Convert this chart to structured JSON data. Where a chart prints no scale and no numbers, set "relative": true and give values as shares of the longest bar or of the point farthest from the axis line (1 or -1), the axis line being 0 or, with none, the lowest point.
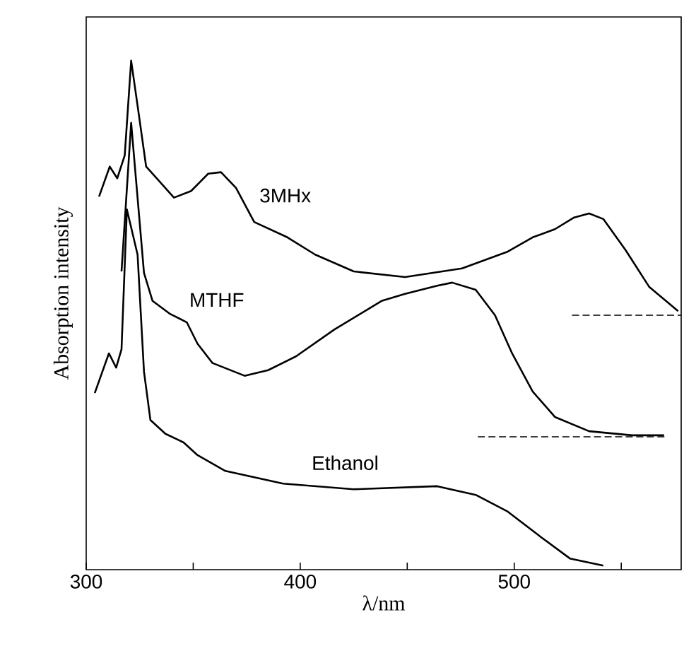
{
  "chart_data": {
    "type": "line",
    "relative": true,
    "xlabel": "λ/nm",
    "ylabel": "Absorption intensity",
    "xlim": [
      300,
      578
    ],
    "xticks": [
      300,
      {
        "value": 350,
        "label": null
      },
      400,
      {
        "value": 450,
        "label": null
      },
      500,
      {
        "value": 550,
        "label": null
      }
    ],
    "tick_labels": "x",
    "grid": false,
    "marker": "none",
    "series": [
      {
        "name": "3MHx",
        "color": "#000000",
        "x": [
          306,
          311,
          314.5,
          318,
          321,
          324.5,
          328,
          334,
          341,
          349,
          357,
          363,
          370,
          378.5,
          394,
          407,
          425,
          449,
          475.6,
          497,
          508.6,
          519,
          528,
          535,
          541.6,
          552,
          563,
          576.6
        ],
        "values": [
          0.733,
          0.792,
          0.769,
          0.814,
          1.0,
          0.897,
          0.792,
          0.764,
          0.731,
          0.744,
          0.778,
          0.781,
          0.75,
          0.683,
          0.653,
          0.619,
          0.586,
          0.575,
          0.592,
          0.625,
          0.653,
          0.669,
          0.692,
          0.7,
          0.689,
          0.628,
          0.556,
          0.508
        ]
      },
      {
        "name": "MTHF",
        "color": "#000000",
        "x": [
          316.5,
          321,
          327,
          331,
          339,
          347,
          352,
          359,
          374,
          385,
          398,
          416,
          438,
          449,
          464,
          471,
          482,
          491,
          499,
          508.6,
          519,
          535,
          555,
          570
        ],
        "values": [
          0.586,
          0.878,
          0.583,
          0.528,
          0.503,
          0.486,
          0.444,
          0.406,
          0.381,
          0.392,
          0.419,
          0.472,
          0.528,
          0.542,
          0.558,
          0.564,
          0.55,
          0.5,
          0.425,
          0.35,
          0.3,
          0.272,
          0.264,
          0.264
        ]
      },
      {
        "name": "Ethanol",
        "color": "#000000",
        "x": [
          304,
          310.6,
          314,
          316.5,
          319,
          324,
          327,
          330,
          337,
          345.5,
          352,
          365,
          392,
          425,
          464,
          482,
          497,
          512.5,
          526,
          541.6
        ],
        "values": [
          0.347,
          0.425,
          0.397,
          0.433,
          0.708,
          0.619,
          0.389,
          0.294,
          0.267,
          0.25,
          0.225,
          0.194,
          0.169,
          0.158,
          0.164,
          0.147,
          0.114,
          0.064,
          0.022,
          0.008
        ]
      },
      {
        "color": "#000000",
        "line_style": "dashed",
        "x": [
          527,
          578
        ],
        "values": [
          0.5,
          0.5
        ]
      },
      {
        "color": "#000000",
        "line_style": "dashed",
        "x": [
          483,
          571
        ],
        "values": [
          0.261,
          0.261
        ]
      }
    ]
  }
}
